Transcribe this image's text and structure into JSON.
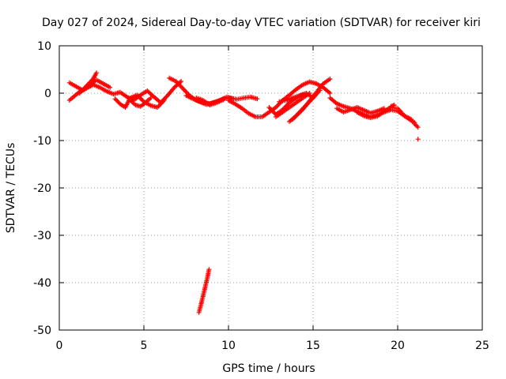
{
  "chart_data": {
    "type": "scatter",
    "title": "Day 027 of 2024, Sidereal Day-to-day VTEC variation (SDTVAR) for receiver kiri",
    "xlabel": "GPS time / hours",
    "ylabel": "SDTVAR / TECUs",
    "xlim": [
      0,
      25
    ],
    "ylim": [
      -50,
      10
    ],
    "xticks": [
      0,
      5,
      10,
      15,
      20,
      25
    ],
    "xtick_labels": [
      "0",
      "5",
      "10",
      "15",
      "20",
      "25"
    ],
    "yticks": [
      10,
      0,
      -10,
      -20,
      -30,
      -40,
      -50
    ],
    "ytick_labels": [
      "10",
      "0",
      "-10",
      "-20",
      "-30",
      "-40",
      "-50"
    ],
    "grid": true,
    "marker": "plus",
    "marker_color": "#ff0000",
    "series": [
      {
        "name": "SDTVAR",
        "tracks": [
          {
            "x": [
              0.6,
              0.9,
              1.2,
              1.6,
              2.0,
              2.4,
              2.8,
              3.2,
              3.6,
              4.0,
              4.4,
              4.8,
              5.2,
              5.6,
              6.0,
              6.4,
              6.8,
              7.2
            ],
            "y": [
              -1.5,
              -0.6,
              0.3,
              1.0,
              1.8,
              1.2,
              0.4,
              -0.2,
              0.2,
              -0.8,
              -1.5,
              -0.4,
              0.5,
              -0.8,
              -2.0,
              -0.5,
              1.2,
              2.5
            ]
          },
          {
            "x": [
              0.6,
              1.0,
              1.4,
              1.8,
              2.2,
              2.6,
              3.0
            ],
            "y": [
              2.2,
              1.4,
              0.6,
              1.8,
              2.8,
              2.0,
              1.2
            ]
          },
          {
            "x": [
              1.2,
              1.6,
              2.0,
              2.2
            ],
            "y": [
              0.0,
              1.5,
              3.0,
              4.3
            ]
          },
          {
            "x": [
              3.3,
              3.6,
              3.9,
              4.2,
              4.6,
              5.0,
              5.4,
              5.8,
              6.2
            ],
            "y": [
              -1.2,
              -2.3,
              -3.0,
              -1.0,
              -0.4,
              -1.8,
              -2.6,
              -3.0,
              -1.5
            ]
          },
          {
            "x": [
              4.2,
              4.5,
              4.8,
              5.1,
              5.4
            ],
            "y": [
              -1.5,
              -2.5,
              -2.8,
              -2.0,
              -1.0
            ]
          },
          {
            "x": [
              6.5,
              6.9,
              7.3,
              7.7,
              8.1,
              8.5,
              8.9,
              9.3,
              9.7,
              10.1,
              10.5,
              10.9,
              11.3,
              11.7
            ],
            "y": [
              3.2,
              2.5,
              1.0,
              -0.5,
              -1.5,
              -2.0,
              -2.2,
              -1.8,
              -1.2,
              -1.0,
              -1.3,
              -1.0,
              -0.8,
              -1.2
            ]
          },
          {
            "x": [
              7.5,
              7.9,
              8.3,
              8.7,
              9.1,
              9.5,
              9.9,
              10.3
            ],
            "y": [
              -0.5,
              -1.2,
              -1.8,
              -2.4,
              -2.0,
              -1.5,
              -0.8,
              -1.2
            ]
          },
          {
            "x": [
              8.1,
              8.5,
              8.9,
              9.3,
              9.7
            ],
            "y": [
              -1.0,
              -1.5,
              -2.5,
              -2.0,
              -1.4
            ]
          },
          {
            "x": [
              10.0,
              10.4,
              10.8,
              11.2,
              11.6,
              12.0,
              12.4,
              12.8,
              13.2,
              13.6,
              14.0,
              14.4,
              14.8,
              15.2,
              15.6,
              16.0
            ],
            "y": [
              -1.5,
              -2.3,
              -3.2,
              -4.3,
              -5.0,
              -5.0,
              -4.0,
              -3.0,
              -1.5,
              -0.4,
              0.8,
              1.8,
              2.4,
              2.0,
              1.2,
              0.0
            ]
          },
          {
            "x": [
              12.4,
              12.8,
              13.2,
              13.6,
              14.0,
              14.4
            ],
            "y": [
              -3.0,
              -4.5,
              -3.5,
              -2.0,
              -1.0,
              -0.3
            ]
          },
          {
            "x": [
              12.8,
              13.2,
              13.6,
              14.0,
              14.4,
              14.8
            ],
            "y": [
              -5.0,
              -4.0,
              -3.0,
              -2.0,
              -1.0,
              0.0
            ]
          },
          {
            "x": [
              13.0,
              13.4,
              13.8,
              14.2,
              14.6,
              15.0
            ],
            "y": [
              -1.8,
              -1.5,
              -1.0,
              -0.5,
              0.0,
              -1.0
            ]
          },
          {
            "x": [
              13.6,
              14.0,
              14.4,
              14.8,
              15.2,
              15.6,
              16.0
            ],
            "y": [
              -6.0,
              -4.8,
              -3.4,
              -1.6,
              0.2,
              2.0,
              3.0
            ]
          },
          {
            "x": [
              13.8,
              14.2,
              14.6,
              15.0,
              15.4
            ],
            "y": [
              -5.5,
              -4.0,
              -2.5,
              -1.0,
              0.6
            ]
          },
          {
            "x": [
              16.0,
              16.4,
              16.8,
              17.2,
              17.6,
              18.0,
              18.4,
              18.8,
              19.2,
              19.6,
              20.0,
              20.4,
              20.8
            ],
            "y": [
              -1.0,
              -2.2,
              -2.8,
              -3.2,
              -3.8,
              -4.5,
              -5.0,
              -4.6,
              -4.0,
              -3.5,
              -3.8,
              -4.8,
              -5.5
            ]
          },
          {
            "x": [
              16.4,
              16.8,
              17.2,
              17.6,
              18.0,
              18.4,
              18.8,
              19.2
            ],
            "y": [
              -3.2,
              -4.0,
              -3.5,
              -3.0,
              -3.6,
              -4.2,
              -3.8,
              -3.2
            ]
          },
          {
            "x": [
              17.6,
              18.0,
              18.4,
              18.8,
              19.2,
              19.6,
              20.0,
              20.4,
              20.8,
              21.0
            ],
            "y": [
              -4.0,
              -4.8,
              -5.2,
              -4.9,
              -3.8,
              -3.0,
              -3.2,
              -4.8,
              -5.8,
              -6.2
            ]
          },
          {
            "x": [
              19.6,
              19.8
            ],
            "y": [
              -2.8,
              -2.5
            ]
          },
          {
            "x": [
              21.0,
              21.2
            ],
            "y": [
              -6.5,
              -7.2
            ]
          },
          {
            "x": [
              21.2
            ],
            "y": [
              -9.7
            ]
          },
          {
            "x": [
              8.25,
              8.35,
              8.45,
              8.55,
              8.65,
              8.75,
              8.85
            ],
            "y": [
              -46.3,
              -45.0,
              -43.5,
              -42.0,
              -40.5,
              -39.0,
              -37.2
            ]
          }
        ]
      }
    ]
  }
}
